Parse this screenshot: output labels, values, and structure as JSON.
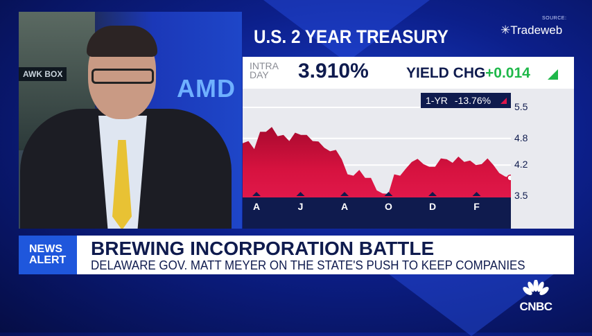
{
  "video": {
    "backdrop_label": "AWK BOX",
    "wall_text": "AMD"
  },
  "graphic": {
    "title": "U.S. 2 YEAR TREASURY",
    "source_label": "SOURCE:",
    "source_name": "Tradeweb",
    "intraday_label_1": "INTRA",
    "intraday_label_2": "DAY",
    "price": "3.910%",
    "yield_chg_label": "YIELD CHG",
    "yield_chg": "+0.014",
    "one_yr_label": "1-YR",
    "one_yr_value": "-13.76%",
    "colors": {
      "up": "#1fb84a",
      "area": "#d6123f",
      "navy": "#0f1b4e"
    }
  },
  "chart_data": {
    "type": "area",
    "title": "",
    "xlabel": "",
    "ylabel": "",
    "x_ticks": [
      "A",
      "J",
      "A",
      "O",
      "D",
      "F"
    ],
    "y_ticks": [
      "5.5",
      "4.8",
      "4.2",
      "3.5"
    ],
    "ylim": [
      3.5,
      5.5
    ],
    "grid": true,
    "values": [
      4.69,
      4.74,
      4.56,
      4.95,
      4.95,
      5.06,
      4.85,
      4.88,
      4.74,
      4.93,
      4.88,
      4.88,
      4.74,
      4.73,
      4.59,
      4.51,
      4.54,
      4.33,
      3.99,
      3.96,
      4.09,
      3.91,
      3.91,
      3.63,
      3.56,
      3.55,
      3.99,
      3.96,
      4.12,
      4.27,
      4.34,
      4.22,
      4.16,
      4.16,
      4.35,
      4.33,
      4.25,
      4.39,
      4.27,
      4.3,
      4.2,
      4.22,
      4.35,
      4.2,
      4.02,
      3.94,
      3.91
    ]
  },
  "ticker": {
    "badge_line1": "NEWS",
    "badge_line2": "ALERT",
    "headline": "BREWING INCORPORATION BATTLE",
    "subline": "DELAWARE GOV. MATT MEYER ON THE STATE'S PUSH TO KEEP COMPANIES"
  },
  "network": {
    "logo": "CNBC"
  }
}
